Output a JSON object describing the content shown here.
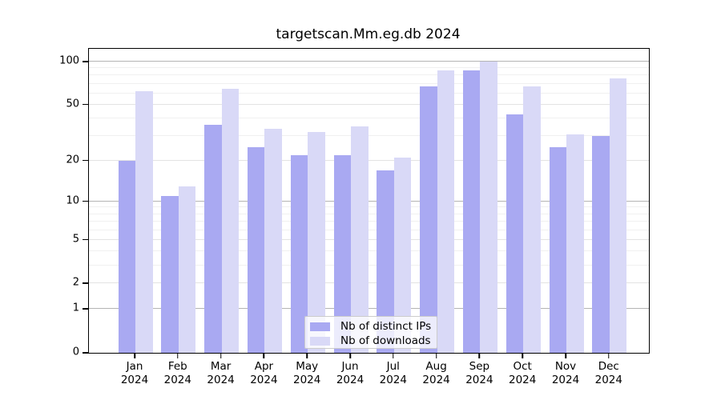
{
  "chart_data": {
    "type": "bar",
    "title": "targetscan.Mm.eg.db 2024",
    "categories": [
      "Jan",
      "Feb",
      "Mar",
      "Apr",
      "May",
      "Jun",
      "Jul",
      "Aug",
      "Sep",
      "Oct",
      "Nov",
      "Dec"
    ],
    "year_label": "2024",
    "series": [
      {
        "name": "Nb of distinct IPs",
        "color": "#a9a9f2",
        "values": [
          20,
          11,
          36,
          25,
          22,
          22,
          17,
          67,
          87,
          43,
          25,
          30
        ]
      },
      {
        "name": "Nb of downloads",
        "color": "#d9d9f7",
        "values": [
          62,
          13,
          65,
          34,
          32,
          35,
          21,
          87,
          100,
          67,
          31,
          76
        ]
      }
    ],
    "yticks": [
      0,
      1,
      2,
      5,
      10,
      20,
      50,
      100
    ],
    "minor_gridlines": [
      3,
      4,
      6,
      7,
      8,
      9,
      30,
      40,
      60,
      70,
      80,
      90
    ],
    "scale": "log10(1+x)",
    "ylim": [
      0,
      123
    ],
    "grid": true,
    "legend_position": "bottom-center",
    "colors": {
      "frame": "#000000",
      "major_gridline": "#b4b4b4",
      "mid_gridline": "#e3e3e3",
      "minor_gridline": "#f0f0f0",
      "background": "#ffffff"
    }
  }
}
